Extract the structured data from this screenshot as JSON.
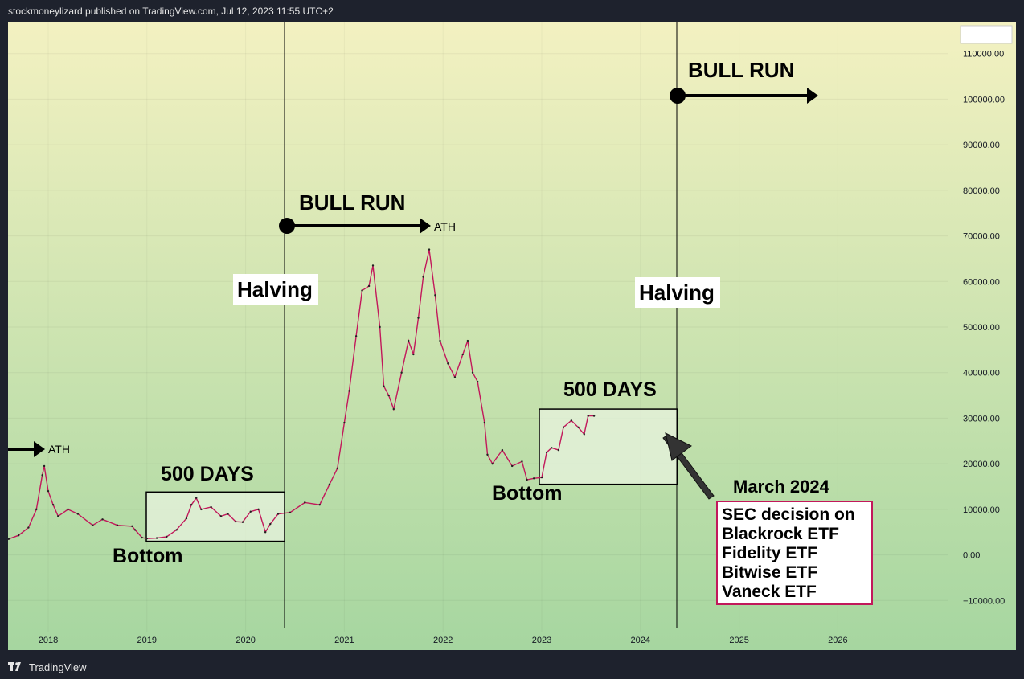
{
  "header": {
    "publisher_line": "stockmoneylizard published on TradingView.com, Jul 12, 2023 11:55 UTC+2"
  },
  "footer": {
    "brand": "TradingView"
  },
  "colors": {
    "bg_top": "#f3f1c1",
    "bg_bottom": "#a6d6a0",
    "price_line": "#c2185b",
    "candle_dark": "#222222"
  },
  "chart_data": {
    "type": "line",
    "title": "",
    "xlabel": "",
    "ylabel": "",
    "x_ticks": [
      "2018",
      "2019",
      "2020",
      "2021",
      "2022",
      "2023",
      "2024",
      "2025",
      "2026"
    ],
    "y_ticks": [
      "110000.00",
      "100000.00",
      "90000.00",
      "80000.00",
      "70000.00",
      "60000.00",
      "50000.00",
      "40000.00",
      "30000.00",
      "20000.00",
      "10000.00",
      "0.00",
      "−10000.00"
    ],
    "ylim": [
      -17000,
      117000
    ],
    "xlim": [
      2017.52,
      2027.5
    ],
    "series": [
      {
        "values": [
          [
            2017.52,
            2600
          ],
          [
            2017.6,
            3500
          ],
          [
            2017.7,
            4300
          ],
          [
            2017.8,
            6000
          ],
          [
            2017.88,
            10000
          ],
          [
            2017.94,
            17500
          ],
          [
            2017.96,
            19500
          ],
          [
            2018.0,
            14000
          ],
          [
            2018.05,
            11000
          ],
          [
            2018.1,
            8500
          ],
          [
            2018.2,
            10000
          ],
          [
            2018.3,
            9000
          ],
          [
            2018.45,
            6500
          ],
          [
            2018.55,
            7800
          ],
          [
            2018.7,
            6500
          ],
          [
            2018.85,
            6300
          ],
          [
            2018.88,
            5500
          ],
          [
            2018.95,
            3800
          ],
          [
            2019.0,
            3600
          ],
          [
            2019.1,
            3700
          ],
          [
            2019.2,
            4000
          ],
          [
            2019.3,
            5500
          ],
          [
            2019.4,
            8000
          ],
          [
            2019.45,
            11000
          ],
          [
            2019.5,
            12500
          ],
          [
            2019.55,
            10000
          ],
          [
            2019.65,
            10500
          ],
          [
            2019.75,
            8500
          ],
          [
            2019.82,
            9000
          ],
          [
            2019.9,
            7300
          ],
          [
            2019.97,
            7200
          ],
          [
            2020.05,
            9500
          ],
          [
            2020.13,
            10000
          ],
          [
            2020.2,
            5000
          ],
          [
            2020.25,
            6800
          ],
          [
            2020.33,
            9000
          ],
          [
            2020.45,
            9300
          ],
          [
            2020.6,
            11500
          ],
          [
            2020.75,
            11000
          ],
          [
            2020.85,
            15500
          ],
          [
            2020.93,
            19000
          ],
          [
            2021.0,
            29000
          ],
          [
            2021.05,
            36000
          ],
          [
            2021.12,
            48000
          ],
          [
            2021.18,
            58000
          ],
          [
            2021.25,
            59000
          ],
          [
            2021.29,
            63500
          ],
          [
            2021.36,
            50000
          ],
          [
            2021.4,
            37000
          ],
          [
            2021.45,
            35000
          ],
          [
            2021.5,
            32000
          ],
          [
            2021.58,
            40000
          ],
          [
            2021.65,
            47000
          ],
          [
            2021.7,
            44000
          ],
          [
            2021.75,
            52000
          ],
          [
            2021.8,
            61000
          ],
          [
            2021.86,
            67000
          ],
          [
            2021.92,
            57000
          ],
          [
            2021.97,
            47000
          ],
          [
            2022.05,
            42000
          ],
          [
            2022.12,
            39000
          ],
          [
            2022.2,
            44000
          ],
          [
            2022.25,
            47000
          ],
          [
            2022.3,
            40000
          ],
          [
            2022.35,
            38000
          ],
          [
            2022.42,
            29000
          ],
          [
            2022.45,
            22000
          ],
          [
            2022.5,
            20000
          ],
          [
            2022.6,
            23000
          ],
          [
            2022.7,
            19500
          ],
          [
            2022.8,
            20500
          ],
          [
            2022.85,
            16500
          ],
          [
            2022.92,
            16800
          ],
          [
            2023.0,
            17000
          ],
          [
            2023.05,
            22500
          ],
          [
            2023.1,
            23500
          ],
          [
            2023.17,
            23000
          ],
          [
            2023.22,
            28000
          ],
          [
            2023.3,
            29500
          ],
          [
            2023.37,
            28000
          ],
          [
            2023.43,
            26500
          ],
          [
            2023.47,
            30500
          ],
          [
            2023.53,
            30500
          ]
        ]
      }
    ],
    "annotations": {
      "bull_run_1": "BULL RUN",
      "bull_run_2": "BULL RUN",
      "ath_1": "ATH",
      "ath_2": "ATH",
      "halving_1": "Halving",
      "halving_2": "Halving",
      "days_1": "500 DAYS",
      "days_2": "500 DAYS",
      "bottom_1": "Bottom",
      "bottom_2": "Bottom",
      "march": "March 2024",
      "sec_lines": [
        "SEC decision on",
        "Blackrock ETF",
        "Fidelity ETF",
        "Bitwise ETF",
        "Vaneck ETF"
      ]
    }
  }
}
